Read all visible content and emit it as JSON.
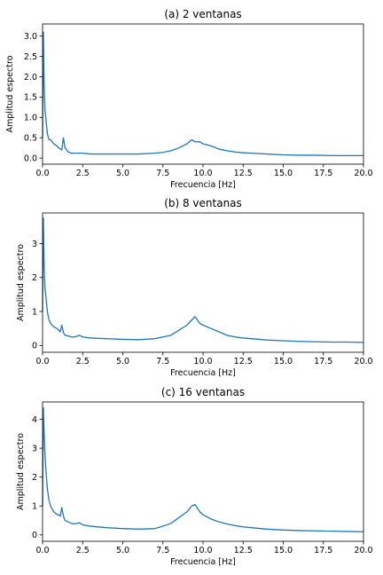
{
  "line_color": "#1f77b4",
  "chart_data": [
    {
      "type": "line",
      "title": "(a) 2 ventanas",
      "xlabel": "Frecuencia [Hz]",
      "ylabel": "Amplitud espectro",
      "xlim": [
        0,
        20
      ],
      "ylim": [
        -0.15,
        3.3
      ],
      "xticks": [
        "0.0",
        "2.5",
        "5.0",
        "7.5",
        "10.0",
        "12.5",
        "15.0",
        "17.5",
        "20.0"
      ],
      "yticks": [
        "0.0",
        "0.5",
        "1.0",
        "1.5",
        "2.0",
        "2.5",
        "3.0"
      ],
      "grid": false,
      "series": [
        {
          "x": [
            0,
            0.05,
            0.1,
            0.15,
            0.2,
            0.3,
            0.4,
            0.5,
            0.7,
            0.9,
            1.0,
            1.2,
            1.3,
            1.4,
            1.6,
            1.8,
            2.0,
            2.5,
            3.0,
            4.0,
            5.0,
            6.0,
            7.0,
            7.5,
            8.0,
            8.5,
            9.0,
            9.3,
            9.5,
            9.8,
            10.0,
            10.5,
            11.0,
            11.5,
            12.0,
            12.5,
            13.0,
            14.0,
            15.0,
            16.0,
            17.0,
            18.0,
            19.0,
            20.0
          ],
          "y": [
            0.5,
            3.1,
            1.8,
            1.2,
            1.0,
            0.6,
            0.45,
            0.45,
            0.35,
            0.3,
            0.25,
            0.2,
            0.5,
            0.25,
            0.15,
            0.12,
            0.12,
            0.12,
            0.1,
            0.1,
            0.1,
            0.1,
            0.12,
            0.14,
            0.18,
            0.25,
            0.35,
            0.45,
            0.4,
            0.4,
            0.35,
            0.3,
            0.22,
            0.18,
            0.15,
            0.13,
            0.12,
            0.1,
            0.08,
            0.07,
            0.07,
            0.06,
            0.06,
            0.06
          ]
        }
      ]
    },
    {
      "type": "line",
      "title": "(b) 8 ventanas",
      "xlabel": "Frecuencia [Hz]",
      "ylabel": "Amplitud espectro",
      "xlim": [
        0,
        20
      ],
      "ylim": [
        -0.2,
        3.9
      ],
      "xticks": [
        "0.0",
        "2.5",
        "5.0",
        "7.5",
        "10.0",
        "12.5",
        "15.0",
        "17.5",
        "20.0"
      ],
      "yticks": [
        "0",
        "1",
        "2",
        "3"
      ],
      "grid": false,
      "series": [
        {
          "x": [
            0,
            0.05,
            0.1,
            0.15,
            0.2,
            0.3,
            0.4,
            0.5,
            0.7,
            0.9,
            1.0,
            1.1,
            1.2,
            1.3,
            1.4,
            1.6,
            1.8,
            2.0,
            2.3,
            2.5,
            3.0,
            4.0,
            5.0,
            6.0,
            7.0,
            7.5,
            8.0,
            8.5,
            9.0,
            9.3,
            9.5,
            9.8,
            10.0,
            10.5,
            11.0,
            11.5,
            12.0,
            12.5,
            13.0,
            14.0,
            15.0,
            16.0,
            17.0,
            18.0,
            19.0,
            20.0
          ],
          "y": [
            1.0,
            3.75,
            2.3,
            1.7,
            1.5,
            1.0,
            0.75,
            0.65,
            0.55,
            0.5,
            0.45,
            0.4,
            0.6,
            0.38,
            0.3,
            0.28,
            0.25,
            0.25,
            0.3,
            0.25,
            0.22,
            0.2,
            0.18,
            0.17,
            0.2,
            0.25,
            0.3,
            0.45,
            0.6,
            0.75,
            0.85,
            0.65,
            0.6,
            0.5,
            0.4,
            0.3,
            0.25,
            0.22,
            0.2,
            0.16,
            0.14,
            0.12,
            0.11,
            0.1,
            0.1,
            0.09
          ]
        }
      ]
    },
    {
      "type": "line",
      "title": "(c) 16 ventanas",
      "xlabel": "Frecuencia [Hz]",
      "ylabel": "Amplitud espectro",
      "xlim": [
        0,
        20
      ],
      "ylim": [
        -0.22,
        4.6
      ],
      "xticks": [
        "0.0",
        "2.5",
        "5.0",
        "7.5",
        "10.0",
        "12.5",
        "15.0",
        "17.5",
        "20.0"
      ],
      "yticks": [
        "0",
        "1",
        "2",
        "3",
        "4"
      ],
      "grid": false,
      "series": [
        {
          "x": [
            0,
            0.05,
            0.1,
            0.15,
            0.2,
            0.3,
            0.4,
            0.5,
            0.7,
            0.9,
            1.0,
            1.1,
            1.2,
            1.3,
            1.4,
            1.6,
            1.8,
            2.0,
            2.3,
            2.5,
            3.0,
            4.0,
            5.0,
            6.0,
            7.0,
            7.5,
            8.0,
            8.5,
            9.0,
            9.3,
            9.5,
            9.8,
            10.0,
            10.5,
            11.0,
            11.5,
            12.0,
            12.5,
            13.0,
            14.0,
            15.0,
            16.0,
            17.0,
            18.0,
            19.0,
            20.0
          ],
          "y": [
            1.0,
            4.4,
            3.5,
            2.8,
            2.3,
            1.6,
            1.2,
            1.0,
            0.8,
            0.7,
            0.7,
            0.65,
            0.95,
            0.65,
            0.5,
            0.45,
            0.4,
            0.38,
            0.42,
            0.35,
            0.3,
            0.25,
            0.22,
            0.2,
            0.22,
            0.3,
            0.4,
            0.6,
            0.8,
            1.0,
            1.05,
            0.8,
            0.7,
            0.55,
            0.45,
            0.38,
            0.32,
            0.28,
            0.25,
            0.2,
            0.17,
            0.15,
            0.14,
            0.13,
            0.12,
            0.11
          ]
        }
      ]
    }
  ]
}
